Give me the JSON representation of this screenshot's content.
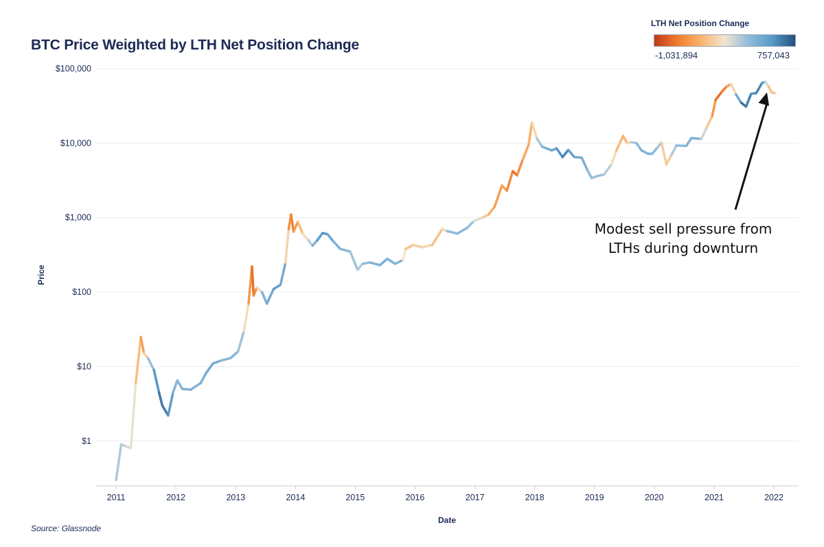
{
  "chart_data": {
    "type": "line",
    "title": "BTC Price Weighted by LTH Net Position Change",
    "xlabel": "Date",
    "ylabel": "Price",
    "y_scale": "log",
    "ylim": [
      0.25,
      100000
    ],
    "y_ticks": [
      1,
      10,
      100,
      1000,
      10000,
      100000
    ],
    "y_tick_labels": [
      "$1",
      "$10",
      "$100",
      "$1,000",
      "$10,000",
      "$100,000"
    ],
    "xlim": [
      "2010-09-01",
      "2022-06-01"
    ],
    "x_ticks": [
      "2011-01-01",
      "2012-01-01",
      "2013-01-01",
      "2014-01-01",
      "2015-01-01",
      "2016-01-01",
      "2017-01-01",
      "2018-01-01",
      "2019-01-01",
      "2020-01-01",
      "2021-01-01",
      "2022-01-01"
    ],
    "x_tick_labels": [
      "2011",
      "2012",
      "2013",
      "2014",
      "2015",
      "2016",
      "2017",
      "2018",
      "2019",
      "2020",
      "2021",
      "2022"
    ],
    "grid": "horizontal",
    "color_scale": {
      "title": "LTH Net Position Change",
      "min": -1031894,
      "max": 757043,
      "min_label": "-1,031,894",
      "max_label": "757,043",
      "stops": [
        "#c0391b",
        "#f07d2c",
        "#f9b571",
        "#f2e5d0",
        "#8fbcdb",
        "#5a9bc8",
        "#24507f"
      ]
    },
    "series": [
      {
        "points": [
          [
            "2011-01-01",
            0.3,
            150000
          ],
          [
            "2011-02-01",
            0.9,
            200000
          ],
          [
            "2011-03-01",
            0.85,
            100000
          ],
          [
            "2011-04-01",
            0.8,
            50000
          ],
          [
            "2011-05-01",
            6.0,
            -10000
          ],
          [
            "2011-06-01",
            25.0,
            -550000
          ],
          [
            "2011-06-20",
            15.0,
            -400000
          ],
          [
            "2011-07-15",
            13.0,
            80000
          ],
          [
            "2011-08-20",
            9.0,
            380000
          ],
          [
            "2011-09-20",
            4.5,
            650000
          ],
          [
            "2011-10-10",
            3.0,
            600000
          ],
          [
            "2011-11-15",
            2.2,
            620000
          ],
          [
            "2011-12-15",
            4.5,
            350000
          ],
          [
            "2012-01-10",
            6.5,
            280000
          ],
          [
            "2012-02-10",
            5.0,
            320000
          ],
          [
            "2012-04-01",
            4.9,
            330000
          ],
          [
            "2012-06-01",
            6.0,
            320000
          ],
          [
            "2012-07-01",
            8.0,
            330000
          ],
          [
            "2012-08-15",
            11.0,
            420000
          ],
          [
            "2012-10-01",
            12.0,
            300000
          ],
          [
            "2012-12-01",
            13.0,
            280000
          ],
          [
            "2013-01-15",
            16.0,
            300000
          ],
          [
            "2013-02-20",
            30.0,
            120000
          ],
          [
            "2013-03-20",
            70.0,
            -250000
          ],
          [
            "2013-04-10",
            220.0,
            -800000
          ],
          [
            "2013-04-20",
            90.0,
            -700000
          ],
          [
            "2013-05-10",
            115.0,
            -500000
          ],
          [
            "2013-06-10",
            100.0,
            300000
          ],
          [
            "2013-07-10",
            70.0,
            350000
          ],
          [
            "2013-08-20",
            110.0,
            420000
          ],
          [
            "2013-10-01",
            125.0,
            560000
          ],
          [
            "2013-11-01",
            250.0,
            200000
          ],
          [
            "2013-11-20",
            700.0,
            -450000
          ],
          [
            "2013-12-05",
            1100.0,
            -700000
          ],
          [
            "2013-12-20",
            650.0,
            -600000
          ],
          [
            "2014-01-15",
            880.0,
            -450000
          ],
          [
            "2014-02-15",
            600.0,
            -150000
          ],
          [
            "2014-03-20",
            500.0,
            50000
          ],
          [
            "2014-04-15",
            420.0,
            250000
          ],
          [
            "2014-05-15",
            500.0,
            400000
          ],
          [
            "2014-06-15",
            620.0,
            550000
          ],
          [
            "2014-07-15",
            600.0,
            500000
          ],
          [
            "2014-08-20",
            480.0,
            350000
          ],
          [
            "2014-10-01",
            380.0,
            300000
          ],
          [
            "2014-12-01",
            350.0,
            300000
          ],
          [
            "2015-01-15",
            200.0,
            120000
          ],
          [
            "2015-02-15",
            240.0,
            200000
          ],
          [
            "2015-04-01",
            250.0,
            300000
          ],
          [
            "2015-06-01",
            230.0,
            350000
          ],
          [
            "2015-07-15",
            280.0,
            320000
          ],
          [
            "2015-09-01",
            240.0,
            320000
          ],
          [
            "2015-10-20",
            270.0,
            300000
          ],
          [
            "2015-11-05",
            380.0,
            -300000
          ],
          [
            "2015-12-20",
            430.0,
            -200000
          ],
          [
            "2016-02-15",
            400.0,
            -150000
          ],
          [
            "2016-04-15",
            430.0,
            -100000
          ],
          [
            "2016-06-15",
            700.0,
            -400000
          ],
          [
            "2016-07-15",
            660.0,
            200000
          ],
          [
            "2016-09-15",
            610.0,
            300000
          ],
          [
            "2016-11-15",
            730.0,
            250000
          ],
          [
            "2016-12-25",
            900.0,
            200000
          ],
          [
            "2017-02-15",
            1000.0,
            -100000
          ],
          [
            "2017-03-25",
            1100.0,
            -300000
          ],
          [
            "2017-05-01",
            1400.0,
            -450000
          ],
          [
            "2017-06-15",
            2700.0,
            -500000
          ],
          [
            "2017-07-15",
            2300.0,
            -400000
          ],
          [
            "2017-08-20",
            4200.0,
            -800000
          ],
          [
            "2017-09-15",
            3700.0,
            -700000
          ],
          [
            "2017-10-20",
            6000.0,
            -450000
          ],
          [
            "2017-11-25",
            9500.0,
            -400000
          ],
          [
            "2017-12-15",
            19000.0,
            -350000
          ],
          [
            "2018-01-15",
            11500.0,
            100000
          ],
          [
            "2018-02-15",
            9000.0,
            300000
          ],
          [
            "2018-03-15",
            8500.0,
            350000
          ],
          [
            "2018-04-15",
            8000.0,
            400000
          ],
          [
            "2018-05-15",
            8500.0,
            450000
          ],
          [
            "2018-06-20",
            6500.0,
            600000
          ],
          [
            "2018-07-25",
            8100.0,
            550000
          ],
          [
            "2018-09-01",
            6500.0,
            400000
          ],
          [
            "2018-10-15",
            6400.0,
            380000
          ],
          [
            "2018-11-20",
            4300.0,
            300000
          ],
          [
            "2018-12-15",
            3400.0,
            200000
          ],
          [
            "2019-01-15",
            3600.0,
            250000
          ],
          [
            "2019-03-01",
            3800.0,
            200000
          ],
          [
            "2019-04-15",
            5200.0,
            100000
          ],
          [
            "2019-05-15",
            8000.0,
            -250000
          ],
          [
            "2019-06-25",
            12500.0,
            -400000
          ],
          [
            "2019-07-20",
            10000.0,
            -300000
          ],
          [
            "2019-08-15",
            10300.0,
            100000
          ],
          [
            "2019-09-15",
            10000.0,
            250000
          ],
          [
            "2019-10-15",
            8000.0,
            300000
          ],
          [
            "2019-11-25",
            7200.0,
            350000
          ],
          [
            "2019-12-20",
            7200.0,
            300000
          ],
          [
            "2020-01-20",
            8700.0,
            250000
          ],
          [
            "2020-02-15",
            10200.0,
            150000
          ],
          [
            "2020-03-15",
            5200.0,
            -500000
          ],
          [
            "2020-04-15",
            6900.0,
            100000
          ],
          [
            "2020-05-15",
            9300.0,
            250000
          ],
          [
            "2020-07-15",
            9200.0,
            280000
          ],
          [
            "2020-08-15",
            11700.0,
            350000
          ],
          [
            "2020-10-15",
            11400.0,
            300000
          ],
          [
            "2020-11-15",
            16000.0,
            -100000
          ],
          [
            "2020-12-20",
            23000.0,
            -350000
          ],
          [
            "2021-01-10",
            38000.0,
            -700000
          ],
          [
            "2021-02-20",
            50000.0,
            -800000
          ],
          [
            "2021-03-20",
            58000.0,
            -550000
          ],
          [
            "2021-04-15",
            62000.0,
            -400000
          ],
          [
            "2021-05-15",
            45000.0,
            200000
          ],
          [
            "2021-06-15",
            35000.0,
            600000
          ],
          [
            "2021-07-15",
            31000.0,
            700000
          ],
          [
            "2021-08-15",
            46000.0,
            500000
          ],
          [
            "2021-09-15",
            47000.0,
            550000
          ],
          [
            "2021-10-20",
            64000.0,
            600000
          ],
          [
            "2021-11-10",
            67000.0,
            350000
          ],
          [
            "2021-12-01",
            57000.0,
            -200000
          ],
          [
            "2021-12-20",
            48000.0,
            -300000
          ],
          [
            "2022-01-05",
            47000.0,
            -250000
          ]
        ]
      }
    ],
    "annotations": [
      {
        "text_lines": [
          "Modest sell pressure from",
          "LTHs during downturn"
        ],
        "arrow_to": [
          "2021-11-20",
          62000
        ]
      }
    ],
    "source": "Source: Glassnode"
  }
}
